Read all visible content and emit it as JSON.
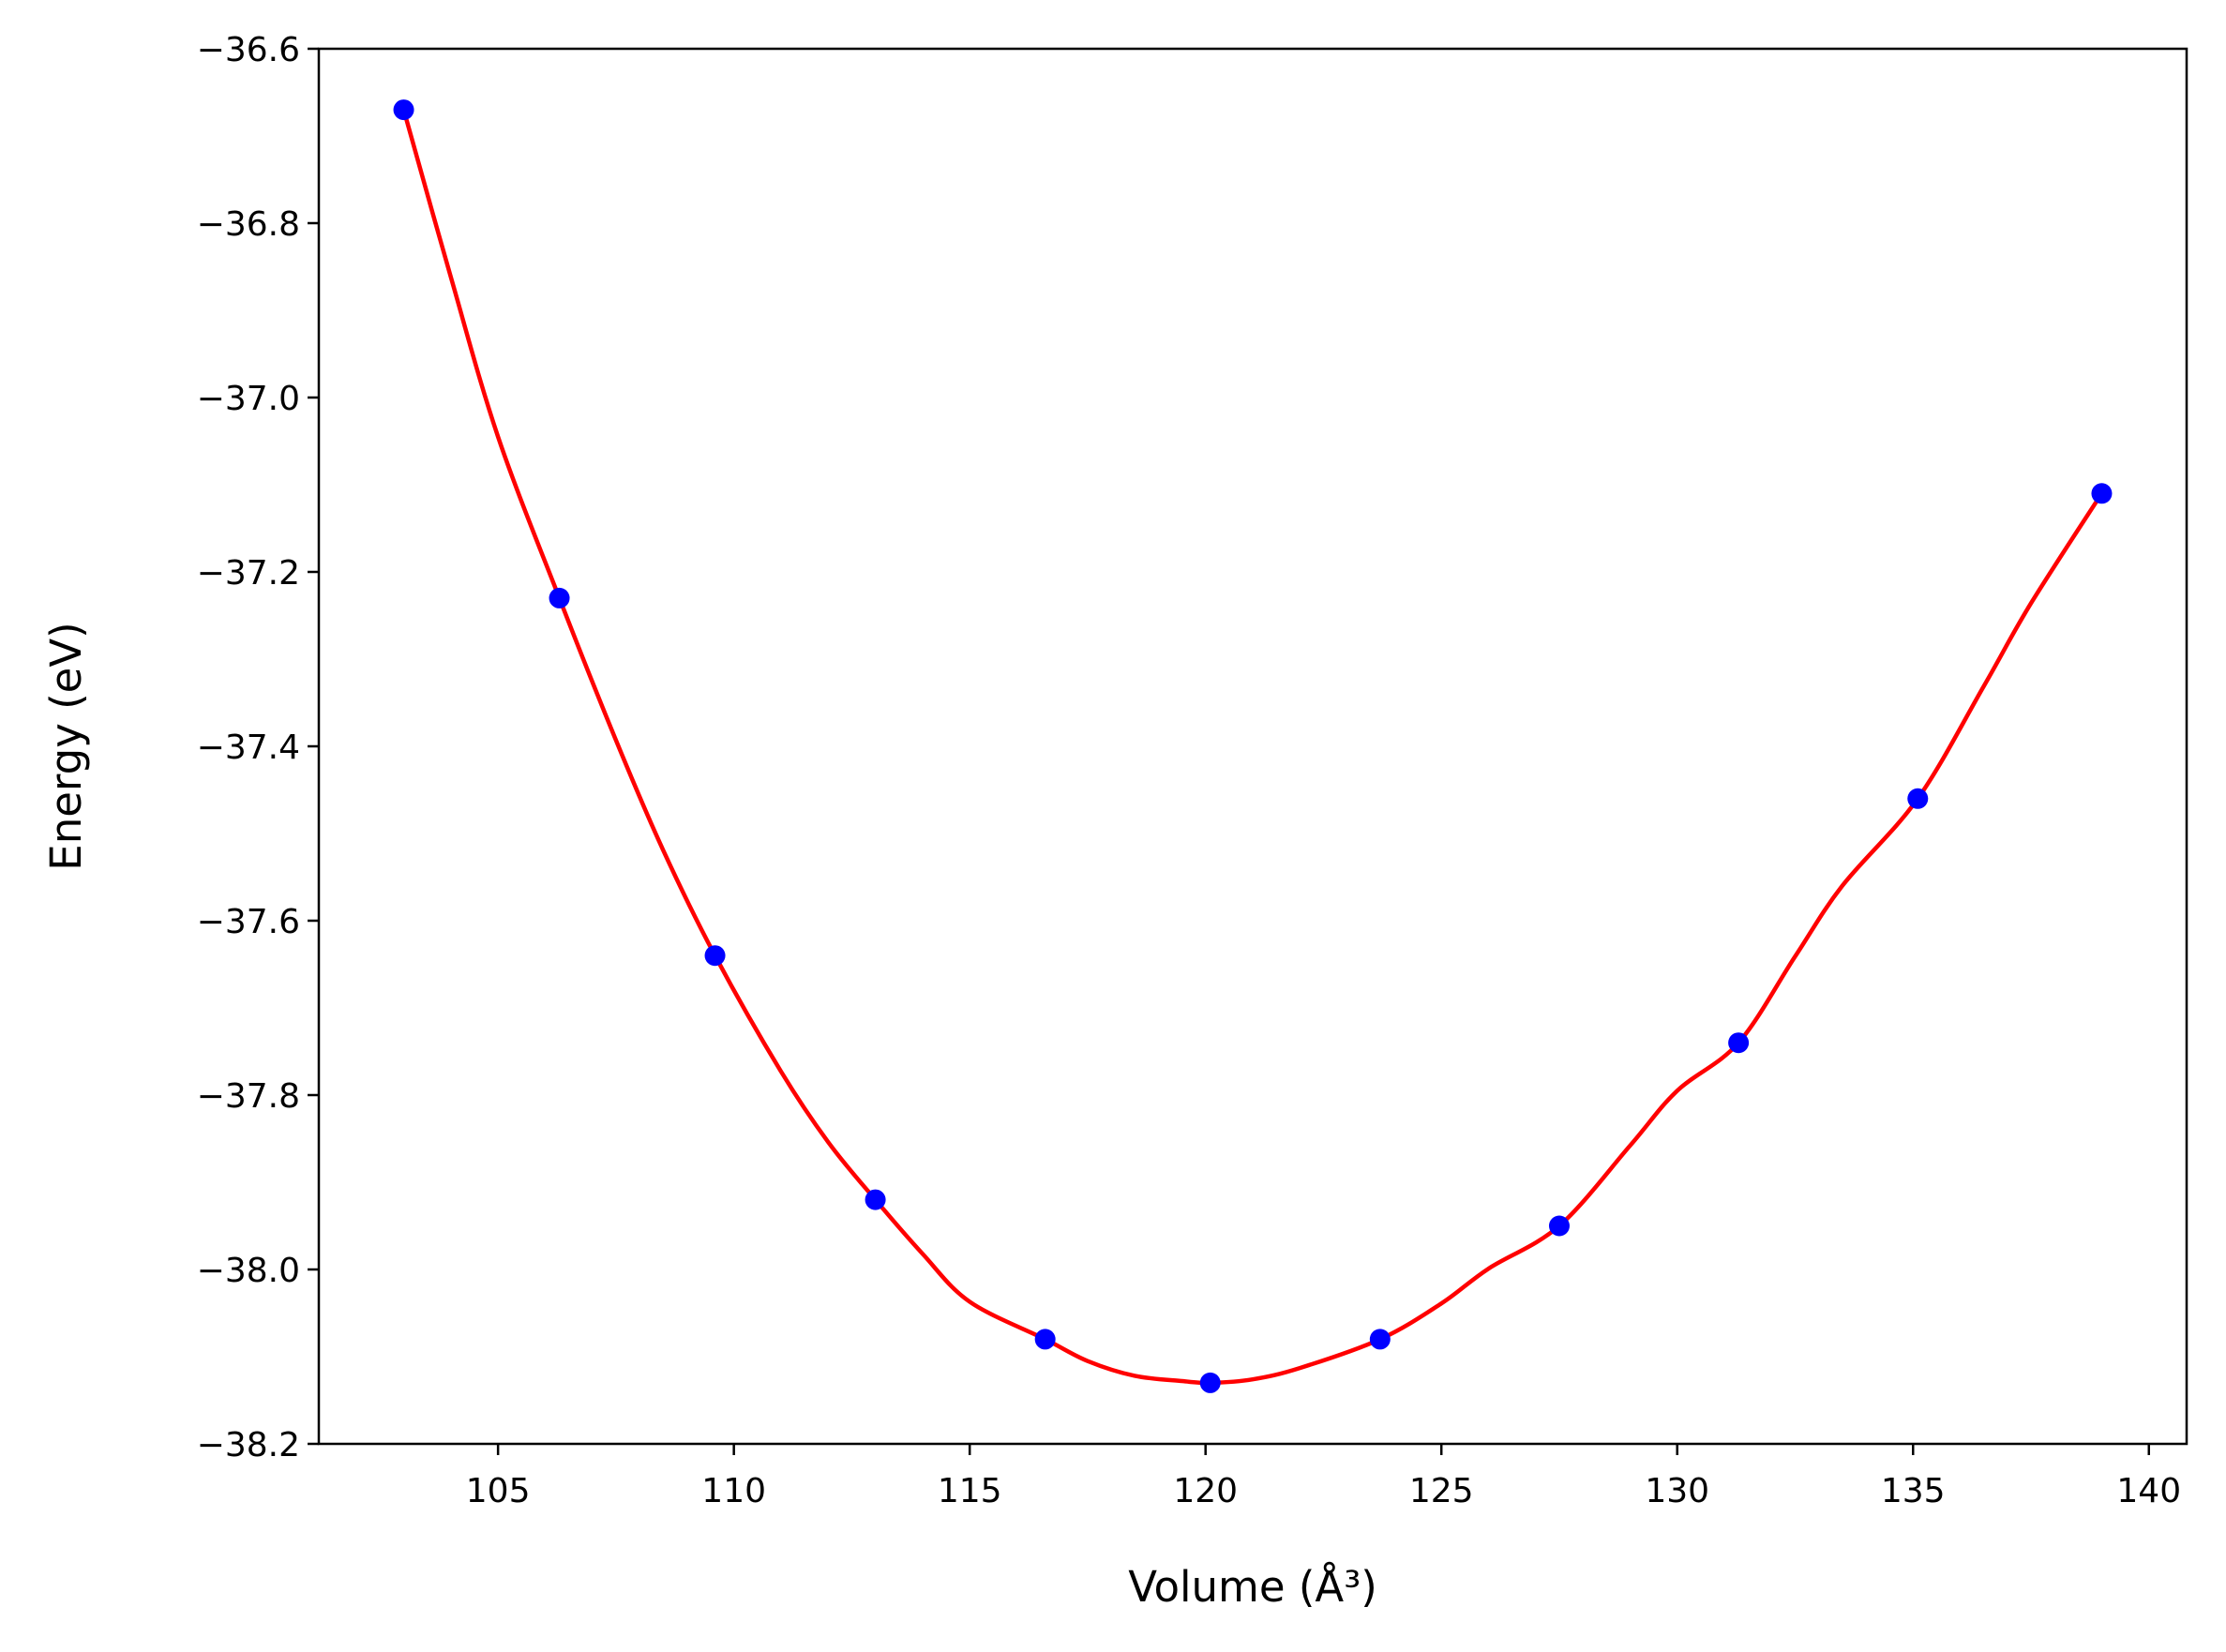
{
  "chart_data": {
    "type": "scatter",
    "title": "",
    "xlabel": "Volume (Å³)",
    "ylabel": "Energy (eV)",
    "xlim": [
      101.2,
      140.8
    ],
    "ylim": [
      -38.2,
      -36.6
    ],
    "x_ticks": [
      105,
      110,
      115,
      120,
      125,
      130,
      135,
      140
    ],
    "y_ticks": [
      -36.6,
      -36.8,
      -37.0,
      -37.2,
      -37.4,
      -37.6,
      -37.8,
      -38.0,
      -38.2
    ],
    "x_tick_labels": [
      "105",
      "110",
      "115",
      "120",
      "125",
      "130",
      "135",
      "140"
    ],
    "y_tick_labels": [
      "−36.6",
      "−36.8",
      "−37.0",
      "−37.2",
      "−37.4",
      "−37.6",
      "−37.8",
      "−38.0",
      "−38.2"
    ],
    "grid": false,
    "series": [
      {
        "kind": "points",
        "color": "#0000ff",
        "x": [
          103.0,
          106.3,
          109.6,
          113.0,
          116.6,
          120.1,
          123.7,
          127.5,
          131.3,
          135.1,
          139.0
        ],
        "y": [
          -36.67,
          -37.23,
          -37.64,
          -37.92,
          -38.08,
          -38.13,
          -38.08,
          -37.95,
          -37.74,
          -37.46,
          -37.11
        ]
      },
      {
        "kind": "fit-curve",
        "color": "#ff0000",
        "x": [
          103.0,
          104.0,
          105.0,
          106.3,
          107.5,
          108.5,
          109.6,
          111.0,
          112.0,
          113.0,
          114.0,
          115.0,
          116.6,
          117.5,
          118.5,
          119.5,
          120.1,
          121.0,
          122.0,
          123.7,
          125.0,
          126.0,
          127.5,
          129.0,
          130.0,
          131.3,
          132.5,
          133.5,
          135.1,
          136.5,
          137.5,
          139.0
        ],
        "y": [
          -36.67,
          -36.862,
          -37.045,
          -37.23,
          -37.393,
          -37.519,
          -37.64,
          -37.773,
          -37.854,
          -37.92,
          -37.982,
          -38.037,
          -38.08,
          -38.105,
          -38.122,
          -38.128,
          -38.13,
          -38.126,
          -38.113,
          -38.08,
          -38.039,
          -37.999,
          -37.95,
          -37.858,
          -37.795,
          -37.74,
          -37.641,
          -37.56,
          -37.46,
          -37.331,
          -37.236,
          -37.11
        ]
      }
    ]
  }
}
